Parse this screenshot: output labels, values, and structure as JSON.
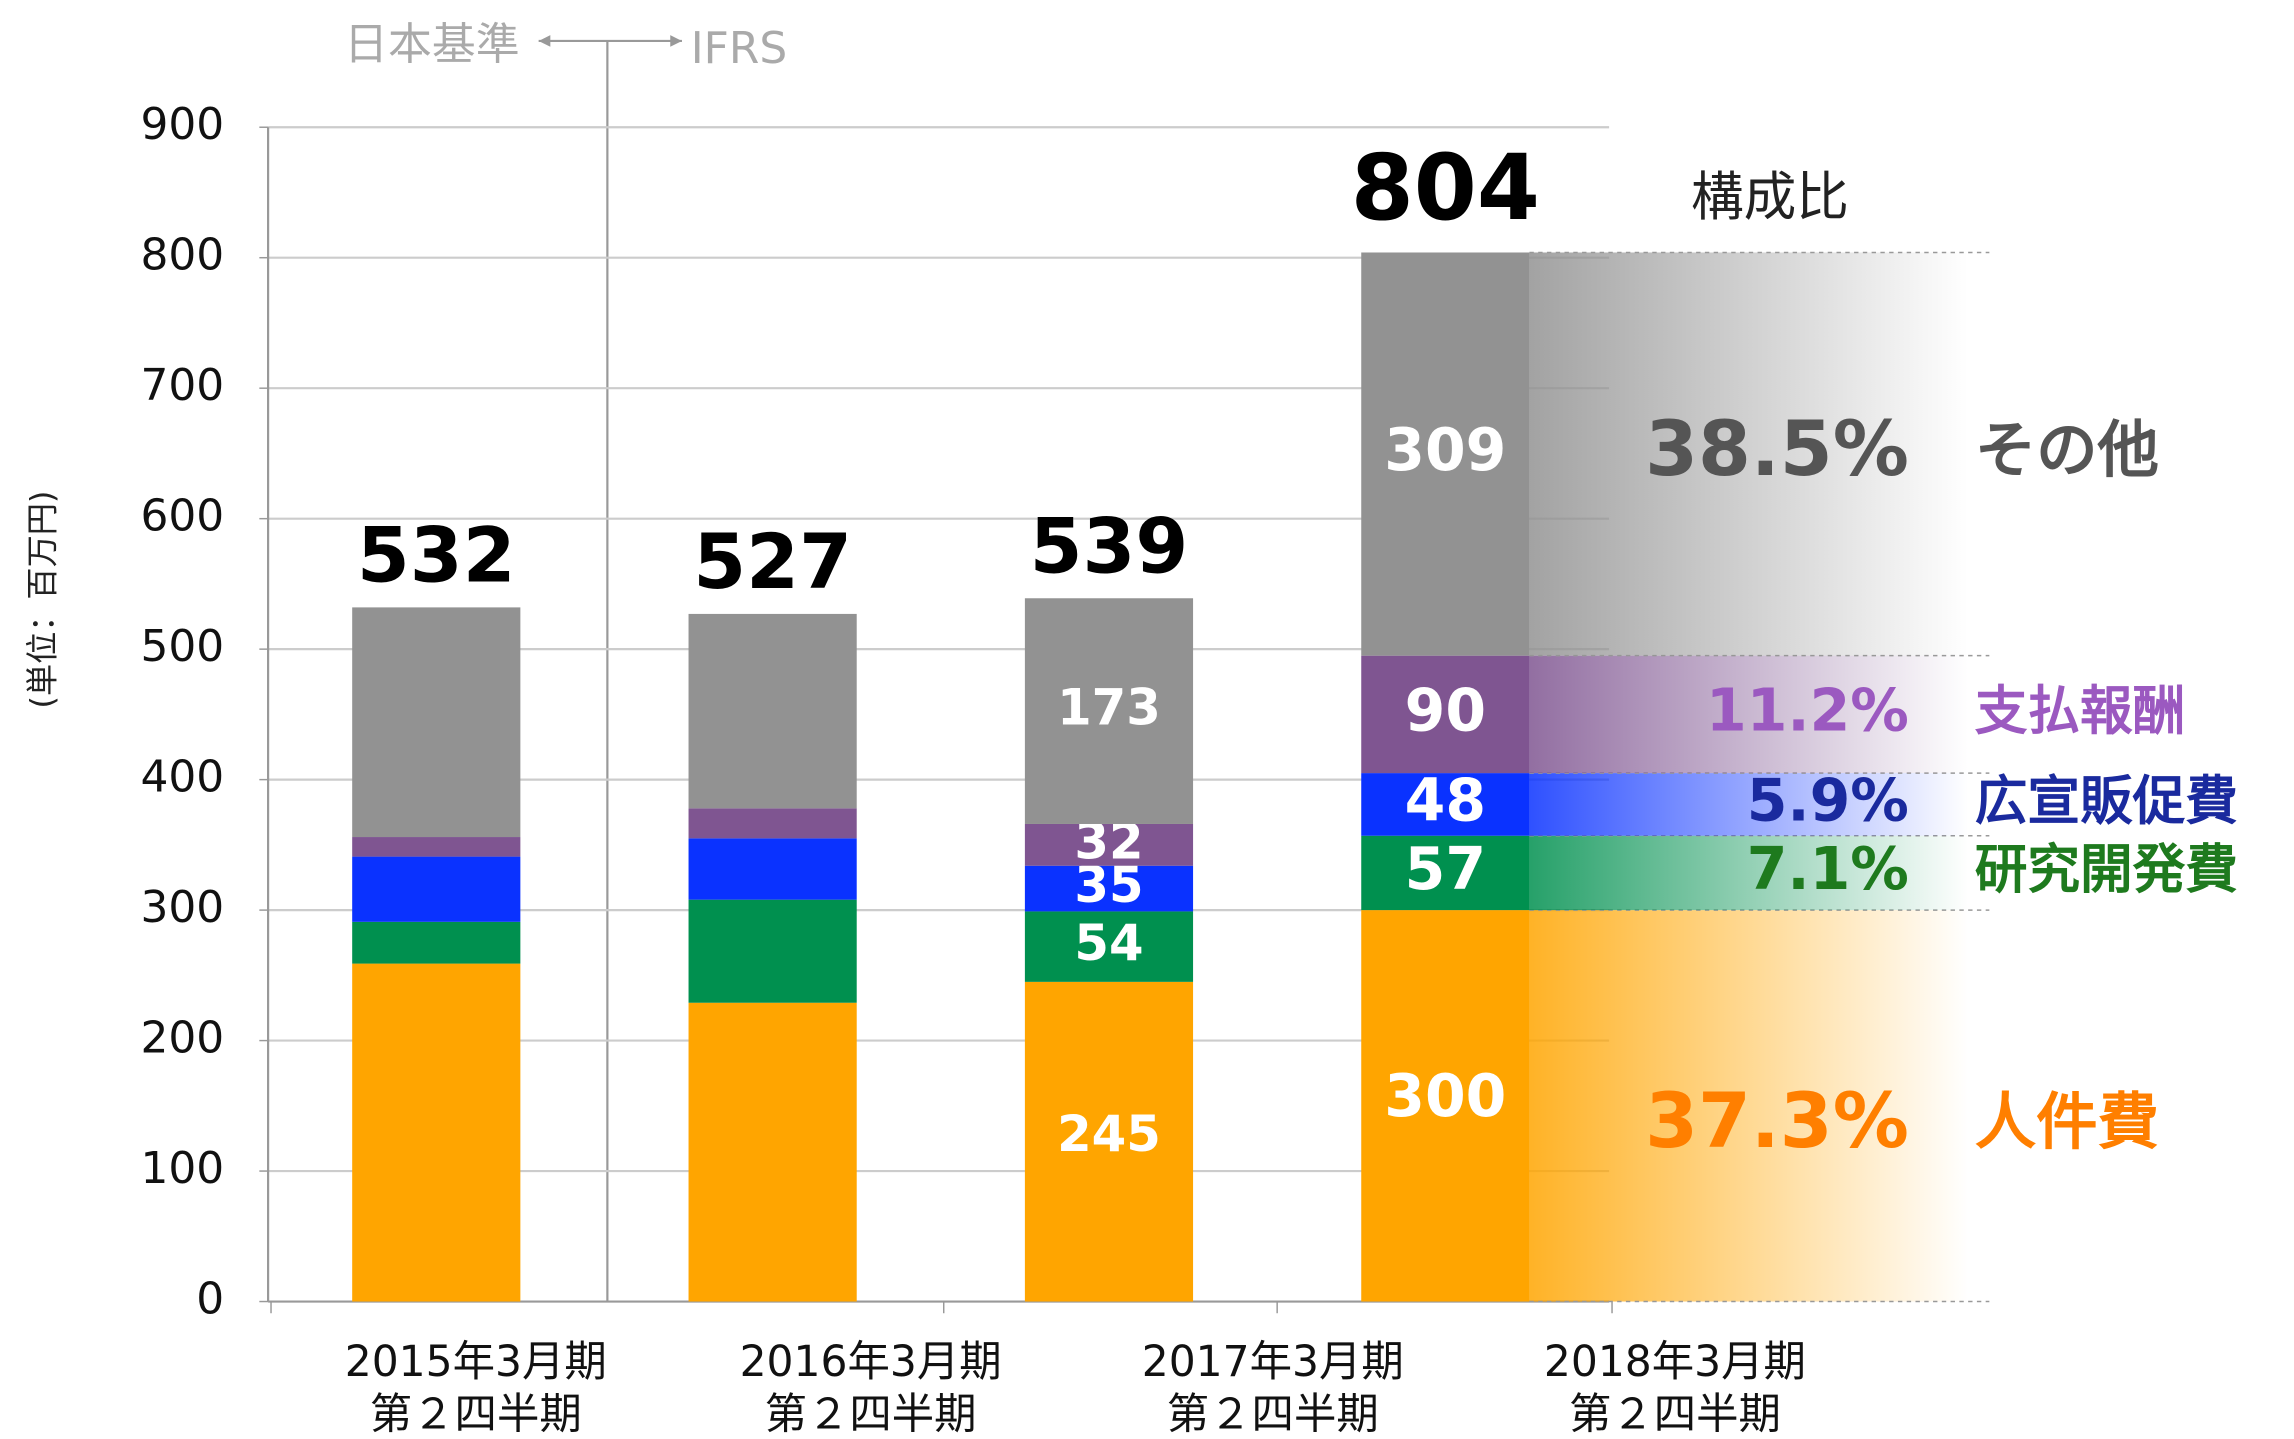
{
  "chart_data": {
    "type": "stacked_bar",
    "y_axis_label": "(単位：百万円)",
    "annotations": {
      "left_standard": "日本基準",
      "right_standard": "IFRS"
    },
    "share_heading": "構成比",
    "categories": [
      [
        "2015年3月期",
        "第２四半期"
      ],
      [
        "2016年3月期",
        "第２四半期"
      ],
      [
        "2017年3月期",
        "第２四半期"
      ],
      [
        "2018年3月期",
        "第２四半期"
      ]
    ],
    "totals": [
      532,
      527,
      539,
      804
    ],
    "series": [
      {
        "name": "人件費",
        "color": "#ffa500",
        "text_color": "#ff7f00",
        "values": [
          259,
          229,
          245,
          300
        ],
        "value_labels": [
          null,
          null,
          "245",
          "300"
        ],
        "share": 37.3,
        "share_label": "37.3%"
      },
      {
        "name": "研究開発費",
        "color": "#00904f",
        "text_color": "#1e7a1e",
        "values": [
          32,
          79,
          54,
          57
        ],
        "value_labels": [
          null,
          null,
          "54",
          "57"
        ],
        "share": 7.1,
        "share_label": "7.1%"
      },
      {
        "name": "広宣販促費",
        "color": "#0a32ff",
        "text_color": "#1a2a9e",
        "values": [
          50,
          47,
          35,
          48
        ],
        "value_labels": [
          null,
          null,
          "35",
          "48"
        ],
        "share": 5.9,
        "share_label": "5.9%"
      },
      {
        "name": "支払報酬",
        "color": "#7f5591",
        "text_color": "#9b59c0",
        "values": [
          15,
          23,
          32,
          90
        ],
        "value_labels": [
          null,
          null,
          "32",
          "90"
        ],
        "share": 11.2,
        "share_label": "11.2%"
      },
      {
        "name": "その他",
        "color": "#929292",
        "text_color": "#555555",
        "values": [
          176,
          149,
          173,
          309
        ],
        "value_labels": [
          null,
          null,
          "173",
          "309"
        ],
        "share": 38.5,
        "share_label": "38.5%"
      }
    ],
    "ylim": [
      0,
      900
    ],
    "yticks": [
      0,
      100,
      200,
      300,
      400,
      500,
      600,
      700,
      800,
      900
    ],
    "grid": true
  }
}
